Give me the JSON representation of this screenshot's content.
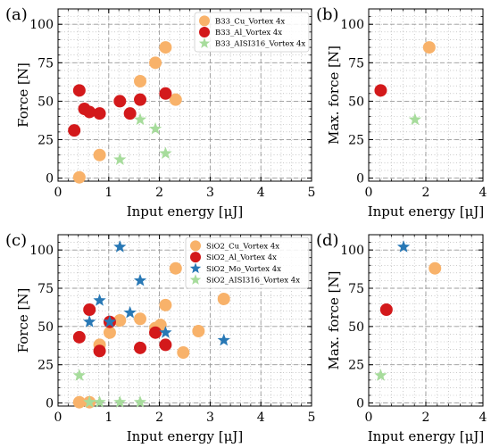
{
  "colors": {
    "cu": "#f8b26a",
    "al": "#d3191b",
    "mo": "#2878b5",
    "aisi": "#a7dc9c",
    "grid": "#aaaaaa"
  },
  "chart_data": [
    {
      "panel_label": "(a)",
      "type": "scatter",
      "xlabel": "Input energy [μJ]",
      "ylabel": "Force [N]",
      "xlim": [
        0,
        5
      ],
      "ylim": [
        -2,
        110
      ],
      "xticks": [
        0,
        1,
        2,
        3,
        4,
        5
      ],
      "yticks": [
        0,
        25,
        50,
        75,
        100
      ],
      "grid": true,
      "legend_position": "upper-right",
      "series": [
        {
          "name": "B33_Cu_Vortex 4x",
          "marker": "circle",
          "color_key": "cu",
          "points": [
            [
              0.42,
              0.5
            ],
            [
              0.82,
              15
            ],
            [
              1.62,
              63
            ],
            [
              1.92,
              75
            ],
            [
              2.12,
              85
            ],
            [
              2.32,
              51
            ]
          ]
        },
        {
          "name": "B33_Al_Vortex 4x",
          "marker": "circle",
          "color_key": "al",
          "points": [
            [
              0.32,
              31
            ],
            [
              0.42,
              57
            ],
            [
              0.52,
              45
            ],
            [
              0.62,
              43
            ],
            [
              0.82,
              42
            ],
            [
              1.22,
              50
            ],
            [
              1.42,
              42
            ],
            [
              1.62,
              51
            ],
            [
              2.12,
              55
            ]
          ]
        },
        {
          "name": "B33_AISI316_Vortex 4x",
          "marker": "star",
          "color_key": "aisi",
          "points": [
            [
              1.22,
              12
            ],
            [
              1.62,
              38
            ],
            [
              1.92,
              32
            ],
            [
              2.12,
              16
            ]
          ]
        }
      ]
    },
    {
      "panel_label": "(b)",
      "type": "scatter",
      "xlabel": "Input energy [μJ]",
      "ylabel": "Max. force [N]",
      "xlim": [
        0,
        4
      ],
      "ylim": [
        -2,
        110
      ],
      "xticks": [
        0,
        2,
        4
      ],
      "yticks": [
        0,
        25,
        50,
        75,
        100
      ],
      "grid": true,
      "series": [
        {
          "marker": "circle",
          "color_key": "cu",
          "points": [
            [
              2.12,
              85
            ]
          ]
        },
        {
          "marker": "circle",
          "color_key": "al",
          "points": [
            [
              0.42,
              57
            ]
          ]
        },
        {
          "marker": "star",
          "color_key": "aisi",
          "points": [
            [
              1.62,
              38
            ]
          ]
        }
      ]
    },
    {
      "panel_label": "(c)",
      "type": "scatter",
      "xlabel": "Input energy [μJ]",
      "ylabel": "Force [N]",
      "xlim": [
        0,
        5
      ],
      "ylim": [
        -2,
        110
      ],
      "xticks": [
        0,
        1,
        2,
        3,
        4,
        5
      ],
      "yticks": [
        0,
        25,
        50,
        75,
        100
      ],
      "grid": true,
      "legend_position": "upper-right",
      "series": [
        {
          "name": "SiO2_Cu_Vortex 4x",
          "marker": "circle",
          "color_key": "cu",
          "points": [
            [
              0.42,
              0.5
            ],
            [
              0.62,
              0.5
            ],
            [
              0.82,
              38
            ],
            [
              1.02,
              46
            ],
            [
              1.22,
              54
            ],
            [
              1.62,
              55
            ],
            [
              1.92,
              49
            ],
            [
              2.02,
              51
            ],
            [
              2.12,
              64
            ],
            [
              2.32,
              88
            ],
            [
              2.47,
              33
            ],
            [
              2.77,
              47
            ],
            [
              3.27,
              68
            ]
          ]
        },
        {
          "name": "SiO2_Al_Vortex 4x",
          "marker": "circle",
          "color_key": "al",
          "points": [
            [
              0.42,
              43
            ],
            [
              0.62,
              61
            ],
            [
              0.82,
              34
            ],
            [
              1.02,
              53
            ],
            [
              1.62,
              36
            ],
            [
              1.92,
              46
            ],
            [
              2.12,
              38
            ]
          ]
        },
        {
          "name": "SiO2_Mo_Vortex 4x",
          "marker": "star",
          "color_key": "mo",
          "points": [
            [
              0.62,
              53
            ],
            [
              0.82,
              67
            ],
            [
              1.02,
              53
            ],
            [
              1.22,
              102
            ],
            [
              1.42,
              59
            ],
            [
              1.62,
              80
            ],
            [
              2.12,
              46
            ],
            [
              3.27,
              41
            ]
          ]
        },
        {
          "name": "SiO2_AISI316_Vortex 4x",
          "marker": "star",
          "color_key": "aisi",
          "points": [
            [
              0.42,
              18
            ],
            [
              0.62,
              0.5
            ],
            [
              0.82,
              0.5
            ],
            [
              1.22,
              0.5
            ],
            [
              1.62,
              0.5
            ]
          ]
        }
      ]
    },
    {
      "panel_label": "(d)",
      "type": "scatter",
      "xlabel": "Input energy [μJ]",
      "ylabel": "Max. force [N]",
      "xlim": [
        0,
        4
      ],
      "ylim": [
        -2,
        110
      ],
      "xticks": [
        0,
        2,
        4
      ],
      "yticks": [
        0,
        25,
        50,
        75,
        100
      ],
      "grid": true,
      "series": [
        {
          "marker": "circle",
          "color_key": "cu",
          "points": [
            [
              2.32,
              88
            ]
          ]
        },
        {
          "marker": "circle",
          "color_key": "al",
          "points": [
            [
              0.62,
              61
            ]
          ]
        },
        {
          "marker": "star",
          "color_key": "mo",
          "points": [
            [
              1.22,
              102
            ]
          ]
        },
        {
          "marker": "star",
          "color_key": "aisi",
          "points": [
            [
              0.42,
              18
            ]
          ]
        }
      ]
    }
  ]
}
